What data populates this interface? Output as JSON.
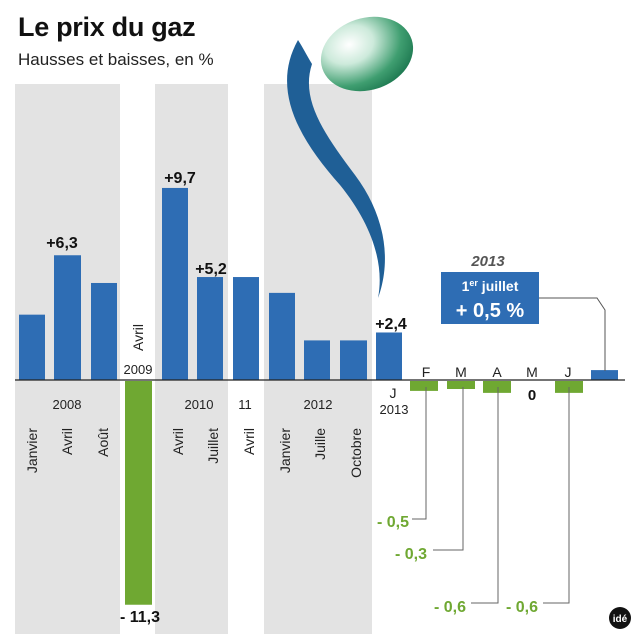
{
  "chart_data": {
    "type": "bar",
    "title": "Le prix du gaz",
    "subtitle": "Hausses et baisses, en %",
    "unit": "%",
    "ylim": [
      -11.3,
      9.7
    ],
    "bars": [
      {
        "year": "2008",
        "month": "Janvier",
        "value": 3.3,
        "color": "blue"
      },
      {
        "year": "2008",
        "month": "Avril",
        "value": 6.3,
        "label": "+6,3",
        "color": "blue"
      },
      {
        "year": "2008",
        "month": "Août",
        "value": 4.9,
        "color": "blue"
      },
      {
        "year": "2009",
        "month": "Avril",
        "value": -11.3,
        "label": "- 11,3",
        "color": "green"
      },
      {
        "year": "2010",
        "month": "Avril",
        "value": 9.7,
        "label": "+9,7",
        "color": "blue"
      },
      {
        "year": "2010",
        "month": "Juillet",
        "value": 5.2,
        "label": "+5,2",
        "color": "blue"
      },
      {
        "year": "11",
        "month": "Avril",
        "value": 5.2,
        "color": "blue"
      },
      {
        "year": "2012",
        "month": "Janvier",
        "value": 4.4,
        "color": "blue"
      },
      {
        "year": "2012",
        "month": "Juille",
        "value": 2.0,
        "color": "blue"
      },
      {
        "year": "2012",
        "month": "Octobre",
        "value": 2.0,
        "color": "blue"
      },
      {
        "year": "2013",
        "month": "J",
        "value": 2.4,
        "label": "+2,4",
        "color": "blue"
      },
      {
        "year": "2013",
        "month": "F",
        "value": -0.5,
        "label": "- 0,5",
        "color": "green"
      },
      {
        "year": "2013",
        "month": "M",
        "value": -0.3,
        "label": "- 0,3",
        "color": "green"
      },
      {
        "year": "2013",
        "month": "A",
        "value": -0.6,
        "label": "- 0,6",
        "color": "green"
      },
      {
        "year": "2013",
        "month": "M",
        "value": 0,
        "label": "0",
        "color": "none"
      },
      {
        "year": "2013",
        "month": "J",
        "value": -0.6,
        "label": "- 0,6",
        "color": "green"
      },
      {
        "year": "2013",
        "month": "1er juillet",
        "value": 0.5,
        "label": "+ 0,5 %",
        "color": "blue"
      }
    ],
    "year_labels": [
      "2008",
      "2009",
      "2010",
      "11",
      "2012",
      "2013",
      "2013"
    ],
    "callout": {
      "year": "2013",
      "date_prefix": "1",
      "date_sup": "er",
      "date_suffix": " juillet",
      "value_label": "+ 0,5 %"
    },
    "colors": {
      "increase": "#2e6db4",
      "decrease": "#6fa832",
      "band": "#e3e3e3",
      "accent_blue": "#1f5f96"
    },
    "credit": "idé"
  }
}
